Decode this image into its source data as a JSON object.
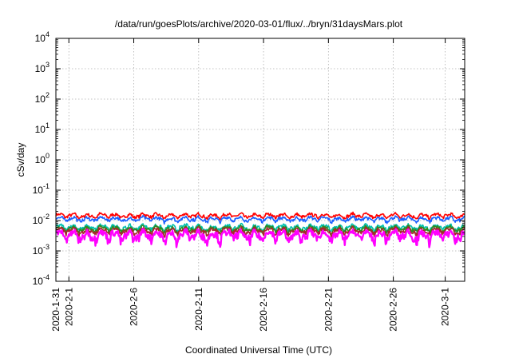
{
  "chart_data": {
    "type": "line",
    "title": "/data/run/goesPlots/archive/2020-03-01/flux/../bryn/31daysMars.plot",
    "xlabel": "Coordinated Universal Time (UTC)",
    "ylabel": "cSv/day",
    "yscale": "log",
    "ylim": [
      0.0001,
      10000
    ],
    "xlim": [
      "2020-01-31",
      "2020-03-02 12:00"
    ],
    "grid": true,
    "legend": "none",
    "y_ticks": [
      {
        "base": "10",
        "exp": "4"
      },
      {
        "base": "10",
        "exp": "3"
      },
      {
        "base": "10",
        "exp": "2"
      },
      {
        "base": "10",
        "exp": "1"
      },
      {
        "base": "10",
        "exp": "0"
      },
      {
        "base": "10",
        "exp": "-1"
      },
      {
        "base": "10",
        "exp": "-2"
      },
      {
        "base": "10",
        "exp": "-3"
      },
      {
        "base": "10",
        "exp": "-4"
      }
    ],
    "x_tick_labels": [
      "2020-1-31",
      "2020-2-1",
      "2020-2-6",
      "2020-2-11",
      "2020-2-16",
      "2020-2-21",
      "2020-2-26",
      "2020-3-1"
    ],
    "x_ticks": [
      "2020-01-31",
      "2020-02-01",
      "2020-02-06",
      "2020-02-11",
      "2020-02-16",
      "2020-02-21",
      "2020-02-26",
      "2020-03-01"
    ],
    "series": [
      {
        "color": "#ff0000",
        "mean": 0.0145,
        "band": 0.0035
      },
      {
        "color": "#1a5fff",
        "mean": 0.0112,
        "band": 0.0028
      },
      {
        "color": "#00c0b0",
        "mean": 0.006,
        "band": 0.0018
      },
      {
        "color": "#2e8b22",
        "mean": 0.0053,
        "band": 0.0016
      },
      {
        "color": "#a52a2a",
        "mean": 0.0046,
        "band": 0.0015
      },
      {
        "color": "#ff00ff",
        "mean": 0.0033,
        "band": 0.0018
      }
    ]
  }
}
